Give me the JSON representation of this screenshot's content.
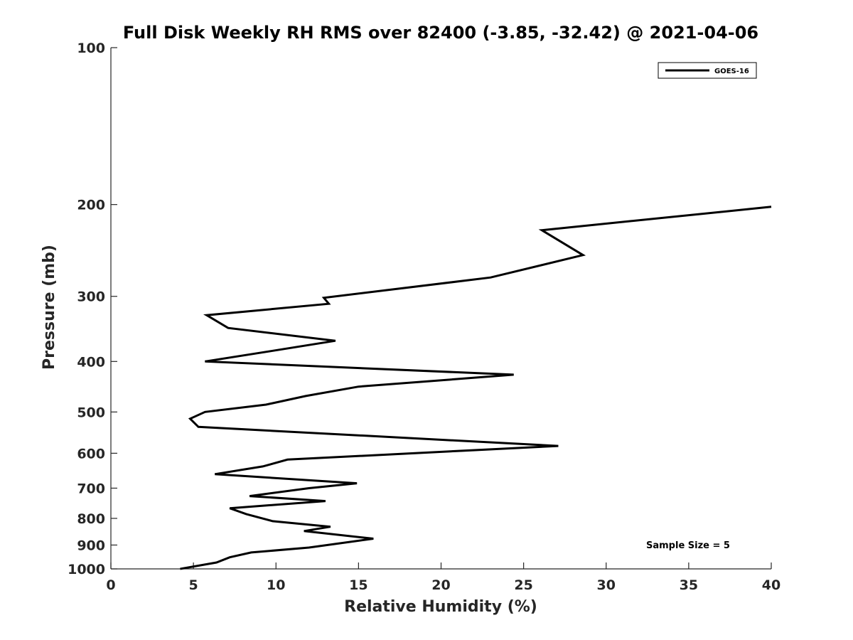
{
  "chart_data": {
    "type": "line",
    "title": "Full Disk Weekly RH RMS over 82400 (-3.85, -32.42) @ 2021-04-06",
    "xlabel": "Relative Humidity (%)",
    "ylabel": "Pressure (mb)",
    "xlim": [
      0,
      40
    ],
    "ylim": [
      100,
      1000
    ],
    "y_scale": "log",
    "y_reversed": true,
    "grid": false,
    "x_ticks": [
      "0",
      "5",
      "10",
      "15",
      "20",
      "25",
      "30",
      "35",
      "40"
    ],
    "y_ticks": [
      "100",
      "200",
      "300",
      "400",
      "500",
      "600",
      "700",
      "800",
      "900",
      "1000"
    ],
    "legend": {
      "position": "top-right",
      "entries": [
        "GOES-16"
      ]
    },
    "annotation": "Sample Size = 5",
    "series": [
      {
        "name": "GOES-16",
        "color": "#000000",
        "points": [
          [
            40.0,
            202
          ],
          [
            26.1,
            224
          ],
          [
            28.6,
            250
          ],
          [
            23.0,
            276
          ],
          [
            12.9,
            302
          ],
          [
            13.2,
            310
          ],
          [
            5.8,
            326
          ],
          [
            7.1,
            345
          ],
          [
            13.6,
            365
          ],
          [
            9.7,
            382
          ],
          [
            5.7,
            400
          ],
          [
            24.4,
            424
          ],
          [
            15.0,
            447
          ],
          [
            11.8,
            466
          ],
          [
            9.4,
            484
          ],
          [
            5.7,
            500
          ],
          [
            4.8,
            515
          ],
          [
            5.3,
            534
          ],
          [
            27.1,
            581
          ],
          [
            10.7,
            617
          ],
          [
            9.2,
            636
          ],
          [
            6.3,
            658
          ],
          [
            14.9,
            685
          ],
          [
            12.0,
            700
          ],
          [
            8.4,
            725
          ],
          [
            13.0,
            741
          ],
          [
            7.2,
            765
          ],
          [
            8.2,
            785
          ],
          [
            9.8,
            810
          ],
          [
            13.3,
            830
          ],
          [
            11.7,
            846
          ],
          [
            15.9,
            875
          ],
          [
            12.0,
            910
          ],
          [
            8.5,
            930
          ],
          [
            7.2,
            950
          ],
          [
            6.4,
            972
          ],
          [
            4.2,
            1000
          ]
        ]
      }
    ]
  }
}
